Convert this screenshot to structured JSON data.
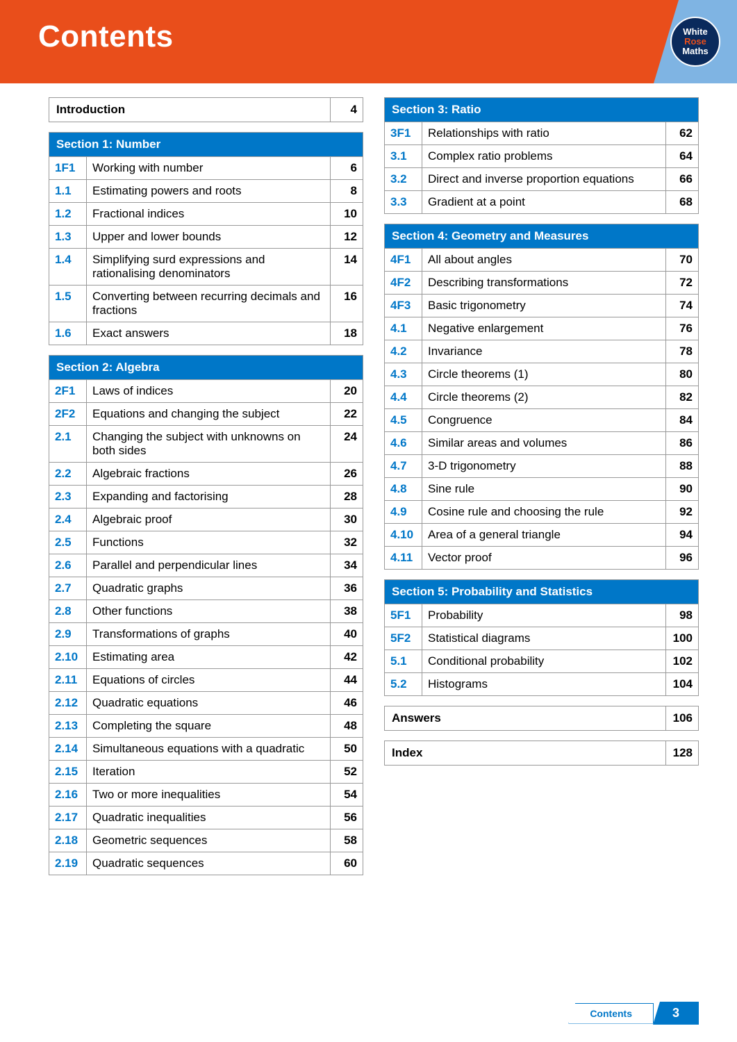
{
  "colors": {
    "orange": "#e94e1b",
    "blue": "#0077c8",
    "lightblue": "#7fb4e3",
    "navy": "#0a2a5c",
    "border": "#999999",
    "text": "#000000",
    "white": "#ffffff"
  },
  "header_title": "Contents",
  "logo": {
    "line1": "White",
    "line2": "Rose",
    "line3": "Maths"
  },
  "intro": {
    "title": "Introduction",
    "page": "4"
  },
  "sections": [
    {
      "heading": "Section 1: Number",
      "rows": [
        {
          "code": "1F1",
          "title": "Working with number",
          "page": "6"
        },
        {
          "code": "1.1",
          "title": "Estimating powers and roots",
          "page": "8"
        },
        {
          "code": "1.2",
          "title": "Fractional indices",
          "page": "10"
        },
        {
          "code": "1.3",
          "title": "Upper and lower bounds",
          "page": "12"
        },
        {
          "code": "1.4",
          "title": "Simplifying surd expressions and rationalising denominators",
          "page": "14"
        },
        {
          "code": "1.5",
          "title": "Converting between recurring decimals and fractions",
          "page": "16"
        },
        {
          "code": "1.6",
          "title": "Exact answers",
          "page": "18"
        }
      ]
    },
    {
      "heading": "Section 2: Algebra",
      "rows": [
        {
          "code": "2F1",
          "title": "Laws of indices",
          "page": "20"
        },
        {
          "code": "2F2",
          "title": "Equations and changing the subject",
          "page": "22"
        },
        {
          "code": "2.1",
          "title": "Changing the subject with unknowns on both sides",
          "page": "24"
        },
        {
          "code": "2.2",
          "title": "Algebraic fractions",
          "page": "26"
        },
        {
          "code": "2.3",
          "title": "Expanding and factorising",
          "page": "28"
        },
        {
          "code": "2.4",
          "title": "Algebraic proof",
          "page": "30"
        },
        {
          "code": "2.5",
          "title": "Functions",
          "page": "32"
        },
        {
          "code": "2.6",
          "title": "Parallel and perpendicular lines",
          "page": "34"
        },
        {
          "code": "2.7",
          "title": "Quadratic graphs",
          "page": "36"
        },
        {
          "code": "2.8",
          "title": "Other functions",
          "page": "38"
        },
        {
          "code": "2.9",
          "title": "Transformations of graphs",
          "page": "40"
        },
        {
          "code": "2.10",
          "title": "Estimating area",
          "page": "42"
        },
        {
          "code": "2.11",
          "title": "Equations of circles",
          "page": "44"
        },
        {
          "code": "2.12",
          "title": "Quadratic equations",
          "page": "46"
        },
        {
          "code": "2.13",
          "title": "Completing the square",
          "page": "48"
        },
        {
          "code": "2.14",
          "title": "Simultaneous equations with a quadratic",
          "page": "50"
        },
        {
          "code": "2.15",
          "title": "Iteration",
          "page": "52"
        },
        {
          "code": "2.16",
          "title": "Two or more inequalities",
          "page": "54"
        },
        {
          "code": "2.17",
          "title": "Quadratic inequalities",
          "page": "56"
        },
        {
          "code": "2.18",
          "title": "Geometric sequences",
          "page": "58"
        },
        {
          "code": "2.19",
          "title": "Quadratic sequences",
          "page": "60"
        }
      ]
    },
    {
      "heading": "Section 3: Ratio",
      "rows": [
        {
          "code": "3F1",
          "title": "Relationships with ratio",
          "page": "62"
        },
        {
          "code": "3.1",
          "title": "Complex ratio problems",
          "page": "64"
        },
        {
          "code": "3.2",
          "title": "Direct and inverse proportion equations",
          "page": "66"
        },
        {
          "code": "3.3",
          "title": "Gradient at a point",
          "page": "68"
        }
      ]
    },
    {
      "heading": "Section 4: Geometry and Measures",
      "rows": [
        {
          "code": "4F1",
          "title": "All about angles",
          "page": "70"
        },
        {
          "code": "4F2",
          "title": "Describing transformations",
          "page": "72"
        },
        {
          "code": "4F3",
          "title": "Basic trigonometry",
          "page": "74"
        },
        {
          "code": "4.1",
          "title": "Negative enlargement",
          "page": "76"
        },
        {
          "code": "4.2",
          "title": "Invariance",
          "page": "78"
        },
        {
          "code": "4.3",
          "title": "Circle theorems (1)",
          "page": "80"
        },
        {
          "code": "4.4",
          "title": "Circle theorems (2)",
          "page": "82"
        },
        {
          "code": "4.5",
          "title": "Congruence",
          "page": "84"
        },
        {
          "code": "4.6",
          "title": "Similar areas and volumes",
          "page": "86"
        },
        {
          "code": "4.7",
          "title": "3-D trigonometry",
          "page": "88"
        },
        {
          "code": "4.8",
          "title": "Sine rule",
          "page": "90"
        },
        {
          "code": "4.9",
          "title": "Cosine rule and choosing the rule",
          "page": "92"
        },
        {
          "code": "4.10",
          "title": "Area of a general triangle",
          "page": "94"
        },
        {
          "code": "4.11",
          "title": "Vector proof",
          "page": "96"
        }
      ]
    },
    {
      "heading": "Section 5: Probability and Statistics",
      "rows": [
        {
          "code": "5F1",
          "title": "Probability",
          "page": "98"
        },
        {
          "code": "5F2",
          "title": "Statistical diagrams",
          "page": "100"
        },
        {
          "code": "5.1",
          "title": "Conditional probability",
          "page": "102"
        },
        {
          "code": "5.2",
          "title": "Histograms",
          "page": "104"
        }
      ]
    }
  ],
  "backmatter": [
    {
      "title": "Answers",
      "page": "106"
    },
    {
      "title": "Index",
      "page": "128"
    }
  ],
  "footer": {
    "label": "Contents",
    "page": "3"
  },
  "layout": {
    "left_col_sections": [
      0,
      1
    ],
    "right_col_sections": [
      2,
      3,
      4
    ]
  }
}
